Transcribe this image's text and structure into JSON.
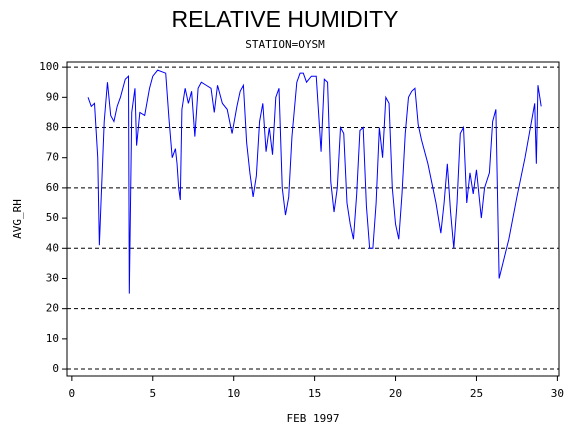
{
  "chart_data": {
    "type": "line",
    "title": "RELATIVE HUMIDITY",
    "subtitle": "STATION=OYSM",
    "x_label": "FEB 1997",
    "y_label": "AVG_RH",
    "xlim": [
      -0.3,
      30.1
    ],
    "ylim": [
      -2.3,
      101.7
    ],
    "xticks": [
      0,
      5,
      10,
      15,
      20,
      25,
      30
    ],
    "yticks": [
      0,
      10,
      20,
      30,
      40,
      50,
      60,
      70,
      80,
      90,
      100
    ],
    "grid": true,
    "series": [
      {
        "name": "AVG_RH",
        "color": "#0000ff",
        "x": [
          1.0,
          1.2,
          1.4,
          1.6,
          1.7,
          1.8,
          2.0,
          2.2,
          2.4,
          2.6,
          2.8,
          3.0,
          3.3,
          3.5,
          3.55,
          3.7,
          3.9,
          4.0,
          4.2,
          4.5,
          4.8,
          5.0,
          5.3,
          5.8,
          6.0,
          6.2,
          6.4,
          6.5,
          6.6,
          6.7,
          6.8,
          7.0,
          7.2,
          7.4,
          7.6,
          7.8,
          8.0,
          8.3,
          8.6,
          8.8,
          9.0,
          9.3,
          9.6,
          9.9,
          10.2,
          10.4,
          10.6,
          10.8,
          11.0,
          11.2,
          11.4,
          11.6,
          11.8,
          12.0,
          12.2,
          12.4,
          12.6,
          12.8,
          13.0,
          13.2,
          13.4,
          13.6,
          13.9,
          14.1,
          14.3,
          14.5,
          14.8,
          15.1,
          15.4,
          15.6,
          15.8,
          16.0,
          16.2,
          16.4,
          16.6,
          16.8,
          17.0,
          17.2,
          17.4,
          17.6,
          17.8,
          18.0,
          18.2,
          18.4,
          18.6,
          18.8,
          19.0,
          19.2,
          19.4,
          19.6,
          19.8,
          20.0,
          20.2,
          20.4,
          20.6,
          20.8,
          21.0,
          21.2,
          21.4,
          21.6,
          22.0,
          22.5,
          22.8,
          23.0,
          23.2,
          23.4,
          23.6,
          23.8,
          24.0,
          24.2,
          24.4,
          24.6,
          24.8,
          25.0,
          25.3,
          25.5,
          25.8,
          26.0,
          26.2,
          26.4,
          27.0,
          27.5,
          28.0,
          28.4,
          28.6,
          28.7,
          28.8,
          29.0
        ],
        "values": [
          90,
          87,
          88,
          70,
          41,
          55,
          82,
          95,
          84,
          82,
          87,
          90,
          96,
          97,
          25,
          85,
          93,
          74,
          85,
          84,
          93,
          97,
          99,
          98,
          83,
          70,
          73,
          68,
          60,
          56,
          86,
          93,
          88,
          92,
          77,
          93,
          95,
          94,
          93,
          85,
          94,
          88,
          86,
          78,
          87,
          92,
          94,
          75,
          65,
          57,
          64,
          82,
          88,
          72,
          80,
          71,
          90,
          93,
          60,
          51,
          57,
          77,
          95,
          98,
          98,
          95,
          97,
          97,
          72,
          96,
          95,
          62,
          52,
          60,
          80,
          78,
          55,
          48,
          43,
          58,
          79,
          80,
          54,
          40,
          40,
          55,
          80,
          70,
          90,
          88,
          60,
          48,
          43,
          58,
          78,
          90,
          92,
          93,
          81,
          76,
          68,
          55,
          45,
          55,
          68,
          52,
          40,
          55,
          78,
          80,
          55,
          65,
          58,
          66,
          50,
          60,
          65,
          82,
          86,
          30,
          43,
          57,
          70,
          82,
          88,
          68,
          94,
          87
        ]
      }
    ]
  }
}
